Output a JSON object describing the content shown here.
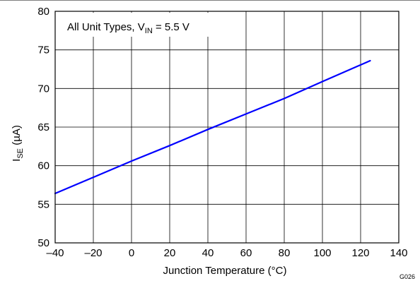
{
  "chart_data": {
    "type": "line",
    "title": "",
    "xlabel": "Junction Temperature (°C)",
    "ylabel_main": "I",
    "ylabel_sub": "SE",
    "ylabel_unit": " (µA)",
    "xlim": [
      -40,
      140
    ],
    "ylim": [
      50,
      80
    ],
    "xticks": [
      -40,
      -20,
      0,
      20,
      40,
      60,
      80,
      100,
      120,
      140
    ],
    "xtick_labels": [
      "–40",
      "–20",
      "0",
      "20",
      "40",
      "60",
      "80",
      "100",
      "120",
      "140"
    ],
    "yticks": [
      50,
      55,
      60,
      65,
      70,
      75,
      80
    ],
    "ytick_labels": [
      "50",
      "55",
      "60",
      "65",
      "70",
      "75",
      "80"
    ],
    "grid": true,
    "legend": "none",
    "series": [
      {
        "color": "#0000ff",
        "x": [
          -40,
          -20,
          0,
          20,
          40,
          60,
          80,
          100,
          125
        ],
        "y": [
          56.4,
          58.5,
          60.6,
          62.6,
          64.7,
          66.7,
          68.7,
          70.9,
          73.6
        ]
      }
    ],
    "annotation": {
      "prefix": "All Unit Types, V",
      "sub": "IN",
      "suffix": " = 5.5 V"
    },
    "figure_code": "G026"
  }
}
